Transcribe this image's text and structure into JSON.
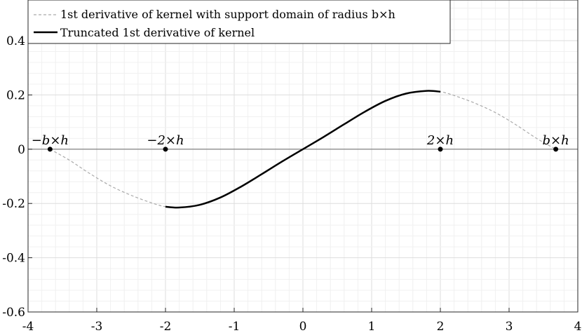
{
  "chart_data": {
    "type": "line",
    "title": "",
    "xlabel": "",
    "ylabel": "",
    "xlim": [
      -4,
      4
    ],
    "ylim": [
      -0.6,
      0.55
    ],
    "xticks": [
      -4,
      -3,
      -2,
      -1,
      0,
      1,
      2,
      3,
      4
    ],
    "xtick_labels": [
      "-4",
      "-3",
      "-2",
      "-1",
      "0",
      "1",
      "2",
      "3",
      "4"
    ],
    "yticks": [
      -0.6,
      -0.4,
      -0.2,
      0,
      0.2,
      0.4
    ],
    "ytick_labels": [
      "-0.6",
      "-0.4",
      "-0.2",
      "0",
      "0.2",
      "0.4"
    ],
    "grid": "on (minor)",
    "legend_position": "top-left",
    "series": [
      {
        "name": "1st derivative of kernel with support domain of radius b×h",
        "style": "dashed",
        "color": "#aaaaaa",
        "x": [
          -3.68,
          -3.4,
          -3.1,
          -2.8,
          -2.5,
          -2.2,
          -2.0,
          -1.8,
          -1.5,
          -1.2,
          -0.9,
          -0.6,
          -0.3,
          0,
          0.3,
          0.6,
          0.9,
          1.2,
          1.5,
          1.8,
          2.0,
          2.2,
          2.5,
          2.8,
          3.1,
          3.4,
          3.68
        ],
        "y": [
          0,
          -0.04,
          -0.09,
          -0.135,
          -0.17,
          -0.198,
          -0.212,
          -0.215,
          -0.205,
          -0.178,
          -0.138,
          -0.092,
          -0.045,
          0,
          0.045,
          0.092,
          0.138,
          0.178,
          0.205,
          0.215,
          0.212,
          0.198,
          0.17,
          0.135,
          0.09,
          0.04,
          0
        ]
      },
      {
        "name": "Truncated 1st derivative of kernel",
        "style": "solid",
        "color": "#000000",
        "x": [
          -2.0,
          -1.8,
          -1.5,
          -1.2,
          -0.9,
          -0.6,
          -0.3,
          0,
          0.3,
          0.6,
          0.9,
          1.2,
          1.5,
          1.8,
          2.0
        ],
        "y": [
          -0.212,
          -0.215,
          -0.205,
          -0.178,
          -0.138,
          -0.092,
          -0.045,
          0,
          0.045,
          0.092,
          0.138,
          0.178,
          0.205,
          0.215,
          0.212
        ]
      }
    ],
    "points": [
      {
        "x": -3.68,
        "y": 0,
        "label": "−b×h"
      },
      {
        "x": -2,
        "y": 0,
        "label": "−2×h"
      },
      {
        "x": 2,
        "y": 0,
        "label": "2×h"
      },
      {
        "x": 3.68,
        "y": 0,
        "label": "b×h"
      }
    ]
  }
}
